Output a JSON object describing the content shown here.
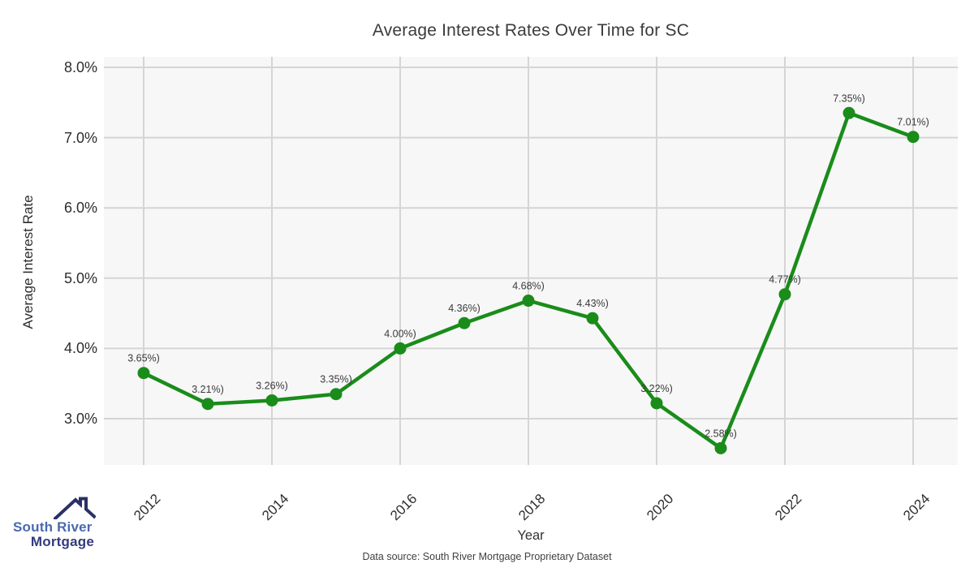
{
  "title": "Average Interest Rates Over Time for SC",
  "chart_data": {
    "type": "line",
    "title": "Average Interest Rates Over Time for SC",
    "xlabel": "Year",
    "ylabel": "Average Interest Rate",
    "x": [
      2012,
      2013,
      2014,
      2015,
      2016,
      2017,
      2018,
      2019,
      2020,
      2021,
      2022,
      2023,
      2024
    ],
    "values": [
      3.65,
      3.21,
      3.26,
      3.35,
      4.0,
      4.36,
      4.68,
      4.43,
      3.22,
      2.58,
      4.77,
      7.35,
      7.01
    ],
    "point_labels": [
      "3.65%)",
      "3.21%)",
      "3.26%)",
      "3.35%)",
      "4.00%)",
      "4.36%)",
      "4.68%)",
      "4.43%)",
      "3.22%)",
      "2.58%)",
      "4.77%)",
      "7.35%)",
      "7.01%)"
    ],
    "yticks": [
      {
        "value": 3.0,
        "label": "3.0%"
      },
      {
        "value": 4.0,
        "label": "4.0%"
      },
      {
        "value": 5.0,
        "label": "5.0%"
      },
      {
        "value": 6.0,
        "label": "6.0%"
      },
      {
        "value": 7.0,
        "label": "7.0%"
      },
      {
        "value": 8.0,
        "label": "8.0%"
      }
    ],
    "xticks": [
      {
        "value": 2012,
        "label": "2012"
      },
      {
        "value": 2014,
        "label": "2014"
      },
      {
        "value": 2016,
        "label": "2016"
      },
      {
        "value": 2018,
        "label": "2018"
      },
      {
        "value": 2020,
        "label": "2020"
      },
      {
        "value": 2022,
        "label": "2022"
      },
      {
        "value": 2024,
        "label": "2024"
      }
    ],
    "ylim": [
      2.34,
      8.15
    ],
    "grid": true,
    "legend": "none",
    "style": {
      "line_color": "#1a8c1a",
      "marker_color": "#1a8c1a",
      "plot_background": "#f7f7f7",
      "grid_color": "#d5d5d5",
      "label_color": "#3a3a3a"
    }
  },
  "footer": {
    "source_text": "Data source: South River Mortgage Proprietary Dataset"
  },
  "logo": {
    "line1": "South River",
    "line2": "Mortgage",
    "line1_color": "#4a69ae",
    "line2_color": "#333b7d",
    "icon_color": "#2b3166",
    "icon": "house-roof-icon"
  }
}
